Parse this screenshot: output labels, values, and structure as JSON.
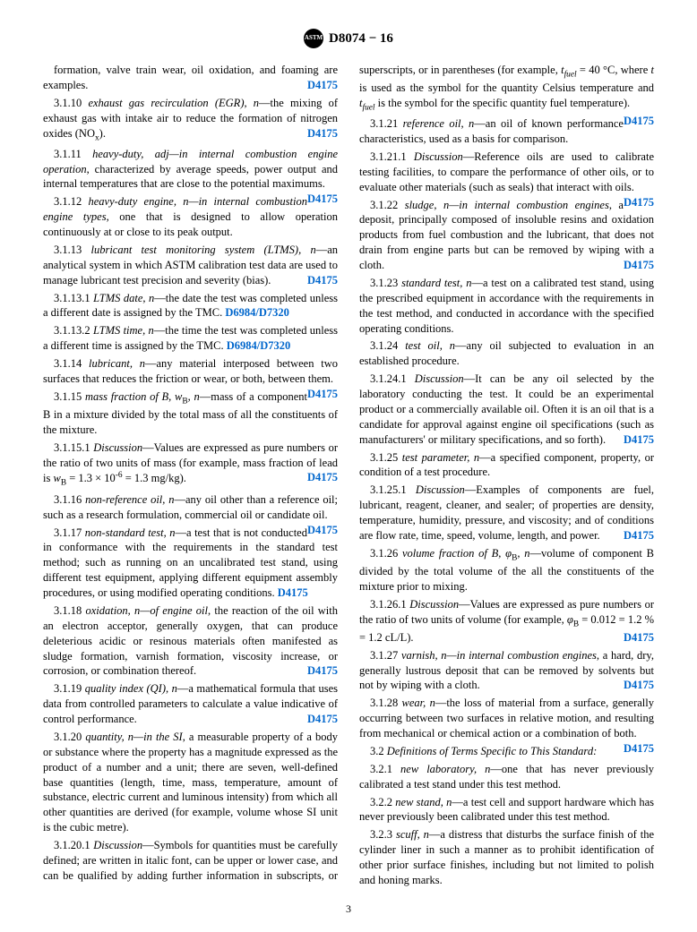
{
  "header": {
    "designation": "D8074 − 16",
    "logo_bg": "#000000"
  },
  "entries": [
    {
      "id": "cont",
      "html": "formation, valve train wear, oil oxidation, and foaming are examples.",
      "ref": "D4175"
    },
    {
      "id": "3.1.10",
      "html": "3.1.10 <span class='italic'>exhaust gas recirculation (EGR), n</span>—the mixing of exhaust gas with intake air to reduce the formation of nitrogen oxides (NO<sub>x</sub>).",
      "ref": "D4175"
    },
    {
      "id": "3.1.11",
      "html": "3.1.11 <span class='italic'>heavy-duty, adj—in internal combustion engine operation</span>, characterized by average speeds, power output and internal temperatures that are close to the potential maximums.",
      "ref": "D4175"
    },
    {
      "id": "3.1.12",
      "html": "3.1.12 <span class='italic'>heavy-duty engine, n—in internal combustion engine types</span>, one that is designed to allow operation continuously at or close to its peak output."
    },
    {
      "id": "3.1.13",
      "html": "3.1.13 <span class='italic'>lubricant test monitoring system (LTMS), n</span>—an analytical system in which ASTM calibration test data are used to manage lubricant test precision and severity (bias).",
      "ref": "D4175"
    },
    {
      "id": "3.1.13.1",
      "html": "3.1.13.1 <span class='italic'>LTMS date, n</span>—the date the test was completed unless a different date is assigned by the TMC. <span class='ref-inline'>D6984/D7320</span>"
    },
    {
      "id": "3.1.13.2",
      "html": "3.1.13.2 <span class='italic'>LTMS time, n</span>—the time the test was completed unless a different time is assigned by the TMC. <span class='ref-inline'>D6984/D7320</span>"
    },
    {
      "id": "3.1.14",
      "html": "3.1.14 <span class='italic'>lubricant, n</span>—any material interposed between two surfaces that reduces the friction or wear, or both, between them.",
      "ref": "D4175"
    },
    {
      "id": "3.1.15",
      "html": "3.1.15 <span class='italic'>mass fraction of B, w</span><sub>B</sub><span class='italic'>, n</span>—mass of a component B in a mixture divided by the total mass of all the constituents of the mixture."
    },
    {
      "id": "3.1.15.1",
      "html": "3.1.15.1 <span class='italic'>Discussion</span>—Values are expressed as pure numbers or the ratio of two units of mass (for example, mass fraction of lead is <span class='italic'>w</span><sub>B</sub> = 1.3 × 10<sup>-6</sup> = 1.3 mg/kg).",
      "ref": "D4175"
    },
    {
      "id": "3.1.16",
      "html": "3.1.16 <span class='italic'>non-reference oil, n</span>—any oil other than a reference oil; such as a research formulation, commercial oil or candidate oil.",
      "ref": "D4175"
    },
    {
      "id": "3.1.17",
      "html": "3.1.17 <span class='italic'>non-standard test, n</span>—a test that is not conducted in conformance with the requirements in the standard test method; such as running on an uncalibrated test stand, using different test equipment, applying different equipment assembly procedures, or using modified operating conditions. <span class='ref-inline'>D4175</span>"
    },
    {
      "id": "3.1.18",
      "html": "3.1.18 <span class='italic'>oxidation, n—of engine oil</span>, the reaction of the oil with an electron acceptor, generally oxygen, that can produce deleterious acidic or resinous materials often manifested as sludge formation, varnish formation, viscosity increase, or corrosion, or combination thereof.",
      "ref": "D4175"
    },
    {
      "id": "3.1.19",
      "html": "3.1.19 <span class='italic'>quality index (QI), n</span>—a mathematical formula that uses data from controlled parameters to calculate a value indicative of control performance.",
      "ref": "D4175"
    },
    {
      "id": "3.1.20",
      "html": "3.1.20 <span class='italic'>quantity, n—in the SI</span>, a measurable property of a body or substance where the property has a magnitude expressed as the product of a number and a unit; there are seven, well-defined base quantities (length, time, mass, temperature, amount of substance, electric current and luminous intensity) from which all other quantities are derived (for example, volume whose SI unit is the cubic metre)."
    },
    {
      "id": "3.1.20.1",
      "html": "3.1.20.1 <span class='italic'>Discussion</span>—Symbols for quantities must be carefully defined; are written in italic font, can be upper or lower case, and can be qualified by adding further information in subscripts, or superscripts, or in parentheses (for example, <span class='italic'>t<sub>fuel</sub></span> = 40 °C, where <span class='italic'>t</span> is used as the symbol for the quantity Celsius temperature and <span class='italic'>t<sub>fuel</sub></span> is the symbol for the specific quantity fuel temperature).",
      "ref": "D4175"
    },
    {
      "id": "3.1.21",
      "html": "3.1.21 <span class='italic'>reference oil, n</span>—an oil of known performance characteristics, used as a basis for comparison."
    },
    {
      "id": "3.1.21.1",
      "html": "3.1.21.1 <span class='italic'>Discussion</span>—Reference oils are used to calibrate testing facilities, to compare the performance of other oils, or to evaluate other materials (such as seals) that interact with oils.",
      "ref": "D4175"
    },
    {
      "id": "3.1.22",
      "html": "3.1.22 <span class='italic'>sludge, n—in internal combustion engines</span>, a deposit, principally composed of insoluble resins and oxidation products from fuel combustion and the lubricant, that does not drain from engine parts but can be removed by wiping with a cloth.",
      "ref": "D4175"
    },
    {
      "id": "3.1.23",
      "html": "3.1.23 <span class='italic'>standard test, n</span>—a test on a calibrated test stand, using the prescribed equipment in accordance with the requirements in the test method, and conducted in accordance with the specified operating conditions."
    },
    {
      "id": "3.1.24",
      "html": "3.1.24 <span class='italic'>test oil, n</span>—any oil subjected to evaluation in an established procedure."
    },
    {
      "id": "3.1.24.1",
      "html": "3.1.24.1 <span class='italic'>Discussion</span>—It can be any oil selected by the laboratory conducting the test. It could be an experimental product or a commercially available oil. Often it is an oil that is a candidate for approval against engine oil specifications (such as manufacturers' or military specifications, and so forth).",
      "ref": "D4175"
    },
    {
      "id": "3.1.25",
      "html": "3.1.25 <span class='italic'>test parameter, n</span>—a specified component, property, or condition of a test procedure."
    },
    {
      "id": "3.1.25.1",
      "html": "3.1.25.1 <span class='italic'>Discussion</span>—Examples of components are fuel, lubricant, reagent, cleaner, and sealer; of properties are density, temperature, humidity, pressure, and viscosity; and of conditions are flow rate, time, speed, volume, length, and power.",
      "ref": "D4175"
    },
    {
      "id": "3.1.26",
      "html": "3.1.26 <span class='italic'>volume fraction of B, φ</span><sub>B</sub><span class='italic'>, n</span>—volume of component B divided by the total volume of the all the constituents of the mixture prior to mixing."
    },
    {
      "id": "3.1.26.1",
      "html": "3.1.26.1 <span class='italic'>Discussion</span>—Values are expressed as pure numbers or the ratio of two units of volume (for example, <span class='italic'>φ</span><sub>B</sub> = 0.012 = 1.2 % = 1.2 cL/L).",
      "ref": "D4175"
    },
    {
      "id": "3.1.27",
      "html": "3.1.27 <span class='italic'>varnish, n—in internal combustion engines</span>, a hard, dry, generally lustrous deposit that can be removed by solvents but not by wiping with a cloth.",
      "ref": "D4175"
    },
    {
      "id": "3.1.28",
      "html": "3.1.28 <span class='italic'>wear, n</span>—the loss of material from a surface, generally occurring between two surfaces in relative motion, and resulting from mechanical or chemical action or a combination of both.",
      "ref": "D4175"
    },
    {
      "id": "3.2",
      "html": "3.2 <span class='italic'>Definitions of Terms Specific to This Standard:</span>"
    },
    {
      "id": "3.2.1",
      "html": "3.2.1 <span class='italic'>new laboratory, n</span>—one that has never previously calibrated a test stand under this test method."
    },
    {
      "id": "3.2.2",
      "html": "3.2.2 <span class='italic'>new stand, n</span>—a test cell and support hardware which has never previously been calibrated under this test method."
    },
    {
      "id": "3.2.3",
      "html": "3.2.3 <span class='italic'>scuff, n</span>—a distress that disturbs the surface finish of the cylinder liner in such a manner as to prohibit identification of other prior surface finishes, including but not limited to polish and honing marks."
    }
  ],
  "page_number": "3",
  "colors": {
    "link": "#0066cc",
    "text": "#000000",
    "bg": "#ffffff"
  }
}
